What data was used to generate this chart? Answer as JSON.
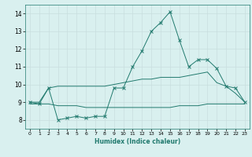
{
  "xlabel": "Humidex (Indice chaleur)",
  "x": [
    0,
    1,
    2,
    3,
    4,
    5,
    6,
    7,
    8,
    9,
    10,
    11,
    12,
    13,
    14,
    15,
    16,
    17,
    18,
    19,
    20,
    21,
    22,
    23
  ],
  "line1": [
    9.0,
    8.9,
    9.8,
    8.0,
    8.1,
    8.2,
    8.1,
    8.2,
    8.2,
    9.8,
    9.8,
    11.0,
    11.9,
    13.0,
    13.5,
    14.1,
    12.5,
    11.0,
    11.4,
    11.4,
    10.9,
    9.9,
    9.8,
    9.0
  ],
  "line2": [
    9.0,
    9.0,
    9.8,
    9.9,
    9.9,
    9.9,
    9.9,
    9.9,
    9.9,
    10.0,
    10.1,
    10.2,
    10.3,
    10.3,
    10.4,
    10.4,
    10.4,
    10.5,
    10.6,
    10.7,
    10.1,
    9.9,
    9.5,
    9.0
  ],
  "line3": [
    8.9,
    8.9,
    8.9,
    8.8,
    8.8,
    8.8,
    8.7,
    8.7,
    8.7,
    8.7,
    8.7,
    8.7,
    8.7,
    8.7,
    8.7,
    8.7,
    8.8,
    8.8,
    8.8,
    8.9,
    8.9,
    8.9,
    8.9,
    8.9
  ],
  "line_color": "#217a6e",
  "bg_color": "#d9f0ef",
  "grid_color": "#c8dede",
  "ylim": [
    7.5,
    14.5
  ],
  "xlim": [
    -0.5,
    23.5
  ],
  "yticks": [
    8,
    9,
    10,
    11,
    12,
    13,
    14
  ],
  "xticks": [
    0,
    1,
    2,
    3,
    4,
    5,
    6,
    7,
    8,
    9,
    10,
    11,
    12,
    13,
    14,
    15,
    16,
    17,
    18,
    19,
    20,
    21,
    22,
    23
  ],
  "xlabel_fontsize": 5.5,
  "tick_fontsize": 4.5,
  "ytick_fontsize": 5.5,
  "lw": 0.7,
  "marker_size": 2.5
}
